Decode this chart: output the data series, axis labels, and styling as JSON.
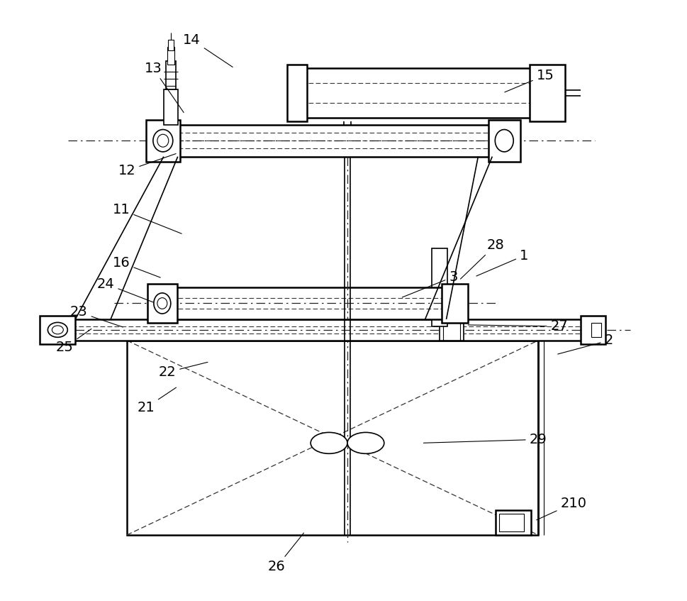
{
  "bg_color": "#ffffff",
  "line_color": "#000000",
  "label_color": "#000000",
  "fig_width": 9.69,
  "fig_height": 8.47
}
